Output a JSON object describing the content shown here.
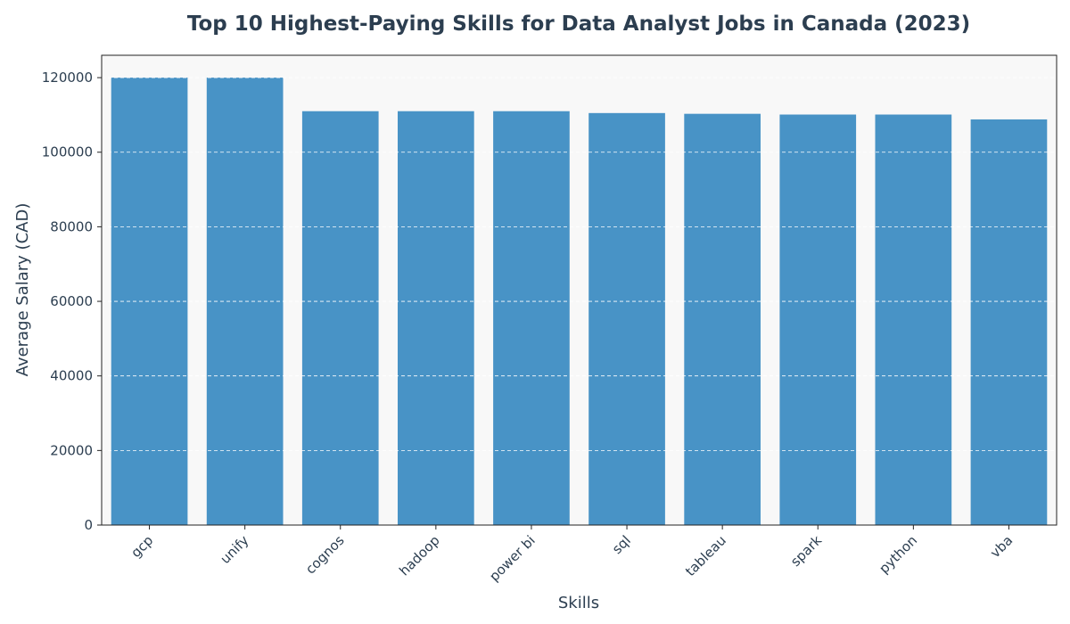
{
  "chart_data": {
    "type": "bar",
    "title": "Top 10 Highest-Paying Skills for Data Analyst Jobs in Canada (2023)",
    "xlabel": "Skills",
    "ylabel": "Average Salary (CAD)",
    "categories": [
      "gcp",
      "unify",
      "cognos",
      "hadoop",
      "power bi",
      "sql",
      "tableau",
      "spark",
      "python",
      "vba"
    ],
    "values": [
      120000,
      120000,
      111000,
      111000,
      111000,
      110500,
      110300,
      110100,
      110100,
      108800
    ],
    "ylim": [
      0,
      126000
    ],
    "yticks": [
      0,
      20000,
      40000,
      60000,
      80000,
      100000,
      120000
    ],
    "grid": true,
    "grid_axis": "y",
    "bar_color": "#4893c6",
    "plot_background": "#f8f8f8",
    "text_color": "#2c3e50",
    "grid_color": "#ffffff"
  }
}
